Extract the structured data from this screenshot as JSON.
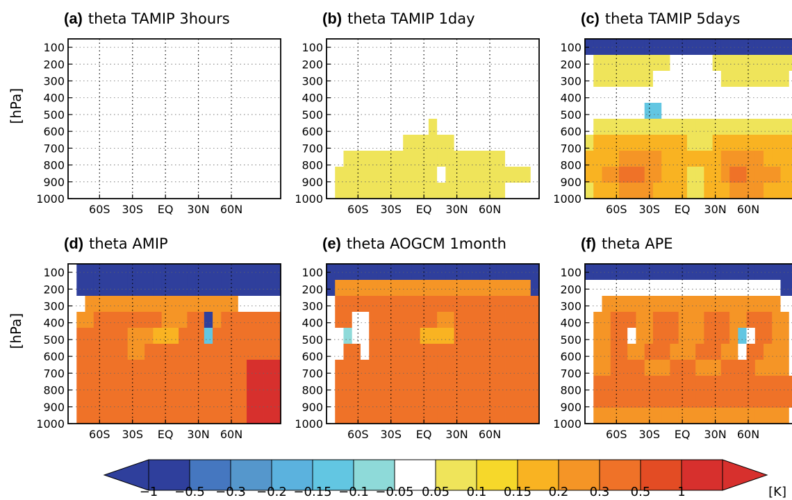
{
  "chart_data": {
    "type": "heatmap",
    "variable": "theta",
    "ylabel": "[hPa]",
    "y_ticks": [
      "100",
      "200",
      "300",
      "400",
      "500",
      "600",
      "700",
      "800",
      "900",
      "1000"
    ],
    "x_ticks": [
      "60S",
      "30S",
      "EQ",
      "30N",
      "60N"
    ],
    "panels": [
      {
        "id": "a",
        "tag": "(a)",
        "title": "theta  TAMIP  3hours",
        "cells": [
          "0000000000000000000000000",
          "0000000000000000000000000",
          "0000000000000000000000000",
          "0000000000000000000000000",
          "0000000000000000000000000",
          "0000000000000000000000000",
          "0000000000000000000000000",
          "0000000000000000000000000",
          "0000000000000000000000000",
          "0000000000000000000000000"
        ]
      },
      {
        "id": "b",
        "tag": "(b)",
        "title": "theta  TAMIP  1day",
        "cells": [
          "0000000000000000000000000",
          "0000000000000000000000000",
          "0000000000000000000000000",
          "0000000000000000000000000",
          "0000000000000000000000000",
          "0000000000001000000000000",
          "0000000001111110000000000",
          "0011111111111111111110000",
          "0111111111111011111111110",
          "0111111111111111111110000"
        ]
      },
      {
        "id": "c",
        "tag": "(c)",
        "title": "theta  TAMIP  5days",
        "cells": [
          "fffffffffffffffffffffffff",
          "0111111111000001111111111",
          "0111111100000000111111110",
          "0000000000000000000000000",
          "0000000ee0000000000000000",
          "0111111111111111111111111",
          "1222222222221112222222222",
          "2222333332222222333332222",
          "2233444332221122344333322",
          "1222333322221122233332222"
        ]
      },
      {
        "id": "d",
        "tag": "(d)",
        "title": "theta  AMIP",
        "cells": [
          "0ffffffffffffffffffffffff",
          "0ffffffffffffffffffffffff",
          "0033333333333333333300000",
          "0334444444433344f34444444",
          "0444444333222444e44444444",
          "0444444334444444444444444",
          "0444444444444444444445555",
          "0444444444444444444445555",
          "0444444444444444444445555",
          "0444444444444444444445555"
        ]
      },
      {
        "id": "e",
        "tag": "(e)",
        "title": "theta  AOGCM  1month",
        "cells": [
          "fffffffffffffffffffffffff",
          "f33333333333333333333333f",
          "0444444444444444444444444",
          "0440044444444334444444444",
          "00d0044444422224444444444",
          "0044044444444444444444444",
          "0444444444444444444444444",
          "0444444444444444444444444",
          "0444444444444444444444444",
          "0444444444444444444444444"
        ]
      },
      {
        "id": "f",
        "tag": "(f)",
        "title": "theta  APE",
        "cells": [
          "fffffffffffffffffffffffff",
          "00000000000000000000000ff",
          "0033333333333333333333300",
          "0334443344433344433444330",
          "033440334443334443e044330",
          "0334433444333444330443330",
          "0334444333444333444433330",
          "0444444444444444444444444",
          "0444444444444444444444444",
          "0333333333333333333333330"
        ]
      }
    ],
    "colorbar": {
      "labels": [
        "−1",
        "−0.5",
        "−0.3",
        "−0.2",
        "−0.15",
        "−0.1",
        "−0.05",
        "0.05",
        "0.1",
        "0.15",
        "0.2",
        "0.3",
        "0.5",
        "1"
      ],
      "unit": "[K]",
      "colors": [
        "#2f3f9c",
        "#4577c0",
        "#5597cc",
        "#5bb2de",
        "#62c6e2",
        "#8edad9",
        "#ffffff",
        "#efe45a",
        "#f6d82a",
        "#f9b322",
        "#f59526",
        "#ef7228",
        "#e34c24",
        "#d7302d"
      ],
      "extend_low_color": "#2f3f9c",
      "extend_high_color": "#d7302d"
    },
    "legend": "bottom",
    "grid": true
  }
}
